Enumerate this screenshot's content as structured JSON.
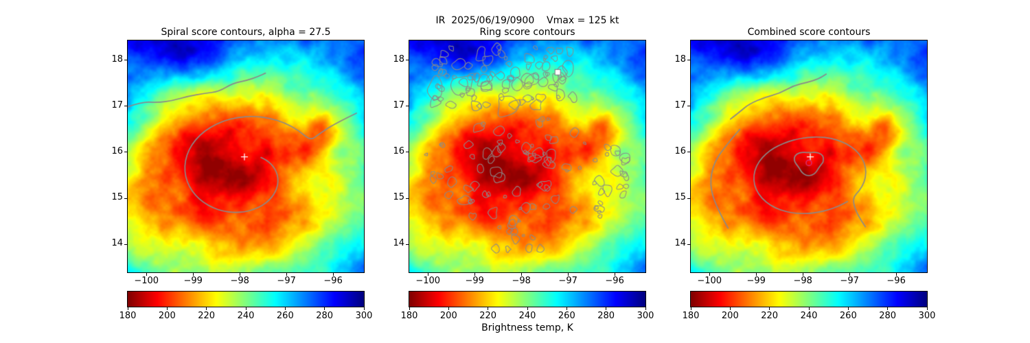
{
  "figure": {
    "suptitle": "IR  2025/06/19/0900    Vmax = 125 kt",
    "background": "#ffffff"
  },
  "axes": {
    "x_tick_labels": [
      "−100",
      "−99",
      "−98",
      "−97",
      "−96"
    ],
    "x_tick_values": [
      -100,
      -99,
      -98,
      -97,
      -96
    ],
    "y_tick_labels": [
      "14",
      "15",
      "16",
      "17",
      "18"
    ],
    "y_tick_values": [
      14,
      15,
      16,
      17,
      18
    ],
    "x_range": [
      -100.4,
      -95.34
    ],
    "y_range": [
      13.39,
      18.43
    ]
  },
  "colorbar": {
    "label": "Brightness temp, K",
    "tick_labels": [
      "180",
      "200",
      "220",
      "240",
      "260",
      "280",
      "300"
    ],
    "tick_values": [
      180,
      200,
      220,
      240,
      260,
      280,
      300
    ],
    "range": [
      180,
      300
    ],
    "colormap": "jet reversed (180 K dark red to 300 K dark blue)"
  },
  "panels": [
    {
      "id": "spiral",
      "title": "Spiral score contours, alpha = 27.5",
      "overlay": "smooth gray spiral score contour lines wrapping the storm center plus an arc along the northern cloud edge",
      "markers": [
        {
          "type": "cross",
          "color": "#ffffff",
          "x": -97.9,
          "y": 15.9
        }
      ]
    },
    {
      "id": "ring",
      "title": "Ring score contours",
      "overlay": "many small speckled gray ring score contour fragments clustered over the northern cloud band, around the eyewall region, and along the southeastern band",
      "markers": [
        {
          "type": "square",
          "color": "#ffffff",
          "x": -97.22,
          "y": 17.74
        }
      ]
    },
    {
      "id": "combined",
      "title": "Combined score contours",
      "overlay": "smooth gray combined score contours: closed loop around the storm center with inner loop, northern edge arc, and western arc",
      "markers": [
        {
          "type": "cross",
          "color": "#ffffff",
          "x": -97.84,
          "y": 15.9
        },
        {
          "type": "circle",
          "color": "#d62d6e",
          "x": -97.87,
          "y": 15.77
        }
      ]
    }
  ],
  "chart_data": {
    "type": "heatmap",
    "suptitle": "IR  2025/06/19/0900    Vmax = 125 kt",
    "panel_titles": [
      "Spiral score contours, alpha = 27.5",
      "Ring score contours",
      "Combined score contours"
    ],
    "x_ticks": [
      -100,
      -99,
      -98,
      -97,
      -96
    ],
    "y_ticks": [
      14,
      15,
      16,
      17,
      18
    ],
    "x_range": [
      -100.4,
      -95.34
    ],
    "y_range": [
      13.39,
      18.43
    ],
    "colorbar": {
      "label": "Brightness temp, K",
      "ticks": [
        180,
        200,
        220,
        240,
        260,
        280,
        300
      ],
      "range": [
        180,
        300
      ],
      "colormap": "jet reversed: 180 K dark red -> orange -> yellow -> green -> cyan -> blue -> 300 K dark blue"
    },
    "field_description": "Infrared brightness-temperature image of a tropical cyclone (same base image in all three panels): very cold cloud tops 185-215 K (dark red/red/orange) over the storm core centered near (-98.2, 15.4); yellow-green transition ring; warm clear air 250-300 K (cyan/blue/dark blue) across the top of the domain (north of ~17) with darkest blue near (-99, 18.2); green-cyan band along the right (eastern) edge and lower corners",
    "storm_center_estimate": {
      "x": -97.9,
      "y": 15.9
    },
    "markers": [
      {
        "panel": "spiral",
        "type": "cross",
        "color": "white",
        "x": -97.9,
        "y": 15.9
      },
      {
        "panel": "ring",
        "type": "open square",
        "color": "white",
        "x": -97.22,
        "y": 17.74
      },
      {
        "panel": "combined",
        "type": "cross",
        "color": "white",
        "x": -97.84,
        "y": 15.9
      },
      {
        "panel": "combined",
        "type": "open circle",
        "color": "crimson",
        "x": -97.87,
        "y": 15.77
      }
    ]
  }
}
